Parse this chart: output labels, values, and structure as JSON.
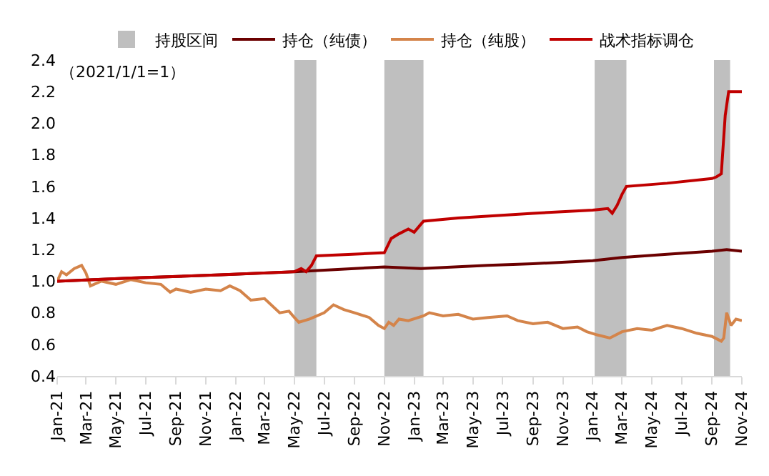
{
  "chart_data": {
    "type": "line",
    "annotations": [
      "（2021/1/1=1）"
    ],
    "xlim": [
      "2021-01-01",
      "2024-11-01"
    ],
    "xticks": [
      {
        "value": "2021-01-01",
        "label": "Jan-21"
      },
      {
        "value": "2021-03-01",
        "label": "Mar-21"
      },
      {
        "value": "2021-05-01",
        "label": "May-21"
      },
      {
        "value": "2021-07-01",
        "label": "Jul-21"
      },
      {
        "value": "2021-09-01",
        "label": "Sep-21"
      },
      {
        "value": "2021-11-01",
        "label": "Nov-21"
      },
      {
        "value": "2022-01-01",
        "label": "Jan-22"
      },
      {
        "value": "2022-03-01",
        "label": "Mar-22"
      },
      {
        "value": "2022-05-01",
        "label": "May-22"
      },
      {
        "value": "2022-07-01",
        "label": "Jul-22"
      },
      {
        "value": "2022-09-01",
        "label": "Sep-22"
      },
      {
        "value": "2022-11-01",
        "label": "Nov-22"
      },
      {
        "value": "2023-01-01",
        "label": "Jan-23"
      },
      {
        "value": "2023-03-01",
        "label": "Mar-23"
      },
      {
        "value": "2023-05-01",
        "label": "May-23"
      },
      {
        "value": "2023-07-01",
        "label": "Jul-23"
      },
      {
        "value": "2023-09-01",
        "label": "Sep-23"
      },
      {
        "value": "2023-11-01",
        "label": "Nov-23"
      },
      {
        "value": "2024-01-01",
        "label": "Jan-24"
      },
      {
        "value": "2024-03-01",
        "label": "Mar-24"
      },
      {
        "value": "2024-05-01",
        "label": "May-24"
      },
      {
        "value": "2024-07-01",
        "label": "Jul-24"
      },
      {
        "value": "2024-09-01",
        "label": "Sep-24"
      },
      {
        "value": "2024-11-01",
        "label": "Nov-24"
      }
    ],
    "ylim": [
      0.4,
      2.4
    ],
    "yticks": [
      {
        "value": 0.4,
        "label": "0.4"
      },
      {
        "value": 0.6,
        "label": "0.6"
      },
      {
        "value": 0.8,
        "label": "0.8"
      },
      {
        "value": 1.0,
        "label": "1.0"
      },
      {
        "value": 1.2,
        "label": "1.2"
      },
      {
        "value": 1.4,
        "label": "1.4"
      },
      {
        "value": 1.6,
        "label": "1.6"
      },
      {
        "value": 1.8,
        "label": "1.8"
      },
      {
        "value": 2.0,
        "label": "2.0"
      },
      {
        "value": 2.2,
        "label": "2.2"
      },
      {
        "value": 2.4,
        "label": "2.4"
      }
    ],
    "grid": false,
    "legend": "top",
    "bands": [
      {
        "axis": "x",
        "from": "2022-05-01",
        "to": "2022-06-15",
        "label": "持股区间",
        "color": "#bfbfbf"
      },
      {
        "axis": "x",
        "from": "2022-11-01",
        "to": "2023-01-20",
        "color": "#bfbfbf"
      },
      {
        "axis": "x",
        "from": "2024-01-05",
        "to": "2024-03-10",
        "color": "#bfbfbf"
      },
      {
        "axis": "x",
        "from": "2024-09-05",
        "to": "2024-10-08",
        "color": "#bfbfbf"
      }
    ],
    "series": [
      {
        "name": "持仓（纯债）",
        "color": "#6b0000",
        "x": [
          "2021-01-01",
          "2021-06-01",
          "2021-12-01",
          "2022-05-01",
          "2022-11-01",
          "2023-01-15",
          "2023-06-01",
          "2023-09-01",
          "2024-01-01",
          "2024-03-01",
          "2024-06-01",
          "2024-09-01",
          "2024-10-01",
          "2024-11-01"
        ],
        "values": [
          1.0,
          1.02,
          1.04,
          1.06,
          1.09,
          1.08,
          1.1,
          1.11,
          1.13,
          1.15,
          1.17,
          1.19,
          1.2,
          1.19
        ]
      },
      {
        "name": "持仓（纯股）",
        "color": "#d4844a",
        "x": [
          "2021-01-01",
          "2021-01-10",
          "2021-01-20",
          "2021-02-05",
          "2021-02-20",
          "2021-03-01",
          "2021-03-10",
          "2021-04-01",
          "2021-05-01",
          "2021-06-01",
          "2021-07-01",
          "2021-08-01",
          "2021-08-20",
          "2021-09-01",
          "2021-10-01",
          "2021-11-01",
          "2021-12-01",
          "2021-12-20",
          "2022-01-10",
          "2022-02-01",
          "2022-03-01",
          "2022-04-01",
          "2022-04-20",
          "2022-05-01",
          "2022-05-10",
          "2022-06-01",
          "2022-07-01",
          "2022-07-20",
          "2022-08-10",
          "2022-09-01",
          "2022-10-01",
          "2022-10-20",
          "2022-11-01",
          "2022-11-10",
          "2022-11-20",
          "2022-12-01",
          "2022-12-20",
          "2023-01-20",
          "2023-02-01",
          "2023-03-01",
          "2023-04-01",
          "2023-05-01",
          "2023-06-01",
          "2023-07-10",
          "2023-08-01",
          "2023-09-01",
          "2023-10-01",
          "2023-11-01",
          "2023-12-01",
          "2023-12-20",
          "2024-01-10",
          "2024-02-05",
          "2024-03-01",
          "2024-04-01",
          "2024-05-01",
          "2024-06-01",
          "2024-07-01",
          "2024-08-01",
          "2024-09-01",
          "2024-09-20",
          "2024-09-25",
          "2024-10-01",
          "2024-10-10",
          "2024-10-20",
          "2024-11-01"
        ],
        "values": [
          1.0,
          1.06,
          1.04,
          1.08,
          1.1,
          1.05,
          0.97,
          1.0,
          0.98,
          1.01,
          0.99,
          0.98,
          0.93,
          0.95,
          0.93,
          0.95,
          0.94,
          0.97,
          0.94,
          0.88,
          0.89,
          0.8,
          0.81,
          0.77,
          0.74,
          0.76,
          0.8,
          0.85,
          0.82,
          0.8,
          0.77,
          0.72,
          0.7,
          0.74,
          0.72,
          0.76,
          0.75,
          0.78,
          0.8,
          0.78,
          0.79,
          0.76,
          0.77,
          0.78,
          0.75,
          0.73,
          0.74,
          0.7,
          0.71,
          0.68,
          0.66,
          0.64,
          0.68,
          0.7,
          0.69,
          0.72,
          0.7,
          0.67,
          0.65,
          0.62,
          0.64,
          0.8,
          0.72,
          0.76,
          0.75
        ]
      },
      {
        "name": "战术指标调仓",
        "color": "#c00000",
        "x": [
          "2021-01-01",
          "2021-06-01",
          "2021-12-01",
          "2022-05-01",
          "2022-05-15",
          "2022-05-25",
          "2022-06-05",
          "2022-06-15",
          "2022-11-01",
          "2022-11-15",
          "2022-12-01",
          "2022-12-20",
          "2023-01-01",
          "2023-01-20",
          "2023-04-01",
          "2023-09-01",
          "2024-01-01",
          "2024-02-01",
          "2024-02-10",
          "2024-02-20",
          "2024-03-01",
          "2024-03-10",
          "2024-06-01",
          "2024-09-01",
          "2024-09-10",
          "2024-09-20",
          "2024-09-28",
          "2024-10-05",
          "2024-11-01"
        ],
        "values": [
          1.0,
          1.02,
          1.04,
          1.06,
          1.08,
          1.06,
          1.1,
          1.16,
          1.18,
          1.27,
          1.3,
          1.33,
          1.31,
          1.38,
          1.4,
          1.43,
          1.45,
          1.46,
          1.43,
          1.48,
          1.55,
          1.6,
          1.62,
          1.65,
          1.66,
          1.68,
          2.05,
          2.2,
          2.2
        ]
      }
    ]
  }
}
